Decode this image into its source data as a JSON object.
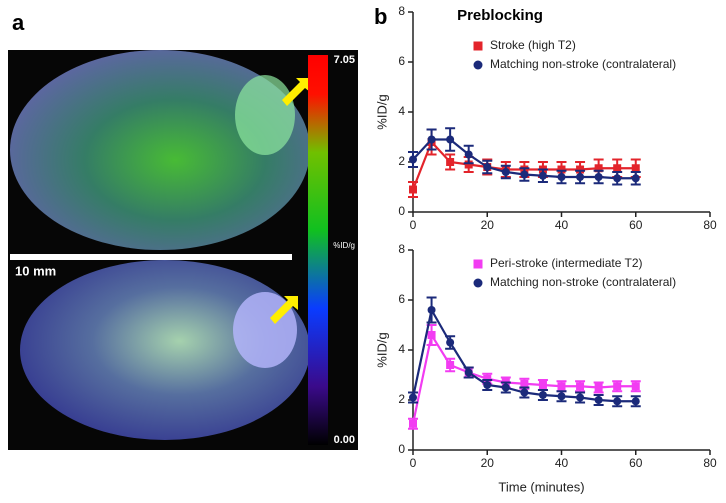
{
  "panel_a": {
    "label": "a",
    "scale_bar": "10 mm",
    "colorbar_max": "7.05",
    "colorbar_unit": "%ID/g",
    "colorbar_min": "0.00"
  },
  "panel_b": {
    "label": "b"
  },
  "chart_data": [
    {
      "type": "line",
      "title": "Preblocking",
      "y_label": "%ID/g",
      "x": [
        0,
        5,
        10,
        15,
        20,
        25,
        30,
        35,
        40,
        45,
        50,
        55,
        60
      ],
      "xlim": [
        0,
        80
      ],
      "xticks": [
        0,
        20,
        40,
        60,
        80
      ],
      "ylim": [
        0,
        8
      ],
      "yticks": [
        0,
        2,
        4,
        6,
        8
      ],
      "series": [
        {
          "name": "Stroke (high T2)",
          "color": "#e3242b",
          "marker": "square",
          "values": [
            0.9,
            2.8,
            2.0,
            1.9,
            1.8,
            1.7,
            1.7,
            1.7,
            1.7,
            1.7,
            1.75,
            1.75,
            1.75
          ],
          "errors": [
            0.3,
            0.5,
            0.3,
            0.3,
            0.3,
            0.3,
            0.3,
            0.3,
            0.3,
            0.3,
            0.35,
            0.35,
            0.35
          ]
        },
        {
          "name": "Matching non-stroke (contralateral)",
          "color": "#1b2a7a",
          "marker": "circle",
          "values": [
            2.1,
            2.9,
            2.9,
            2.3,
            1.8,
            1.6,
            1.5,
            1.45,
            1.4,
            1.4,
            1.4,
            1.35,
            1.35
          ],
          "errors": [
            0.3,
            0.4,
            0.45,
            0.35,
            0.25,
            0.25,
            0.25,
            0.25,
            0.25,
            0.25,
            0.25,
            0.25,
            0.25
          ]
        }
      ]
    },
    {
      "type": "line",
      "y_label": "%ID/g",
      "x_label": "Time (minutes)",
      "x": [
        0,
        5,
        10,
        15,
        20,
        25,
        30,
        35,
        40,
        45,
        50,
        55,
        60
      ],
      "xlim": [
        0,
        80
      ],
      "xticks": [
        0,
        20,
        40,
        60,
        80
      ],
      "ylim": [
        0,
        8
      ],
      "yticks": [
        0,
        2,
        4,
        6,
        8
      ],
      "series": [
        {
          "name": "Peri-stroke (intermediate T2)",
          "color": "#f23cf2",
          "marker": "square",
          "values": [
            1.05,
            4.6,
            3.4,
            3.1,
            2.85,
            2.7,
            2.65,
            2.6,
            2.55,
            2.55,
            2.5,
            2.55,
            2.55
          ],
          "errors": [
            0.2,
            0.4,
            0.25,
            0.2,
            0.2,
            0.2,
            0.2,
            0.2,
            0.2,
            0.2,
            0.2,
            0.2,
            0.2
          ]
        },
        {
          "name": "Matching non-stroke (contralateral)",
          "color": "#1b2a7a",
          "marker": "circle",
          "values": [
            2.1,
            5.6,
            4.3,
            3.1,
            2.6,
            2.5,
            2.3,
            2.2,
            2.15,
            2.1,
            2.0,
            1.95,
            1.95
          ],
          "errors": [
            0.2,
            0.5,
            0.25,
            0.2,
            0.2,
            0.2,
            0.2,
            0.2,
            0.2,
            0.2,
            0.2,
            0.2,
            0.2
          ]
        }
      ]
    }
  ]
}
